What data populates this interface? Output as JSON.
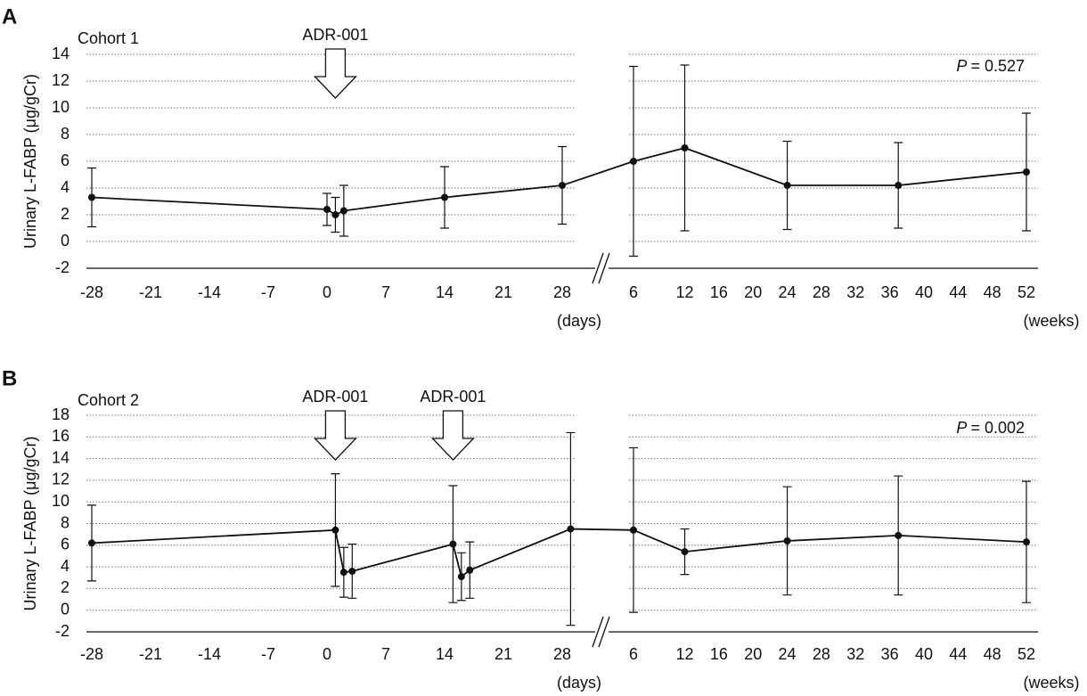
{
  "chart_data": [
    {
      "type": "line",
      "panel_label": "A",
      "cohort": "Cohort 1",
      "ylabel": "Urinary L-FABP (μg/gCr)",
      "p_label": "P",
      "p_value": "= 0.527",
      "arrows": [
        {
          "label": "ADR-001",
          "x": 1
        }
      ],
      "ylim": [
        -2,
        14
      ],
      "yticks": [
        -2,
        0,
        2,
        4,
        6,
        8,
        10,
        12,
        14
      ],
      "grid": true,
      "color": "#111111",
      "days": {
        "xlim": [
          -28,
          28
        ],
        "xticks": [
          -28,
          -21,
          -14,
          -7,
          0,
          7,
          14,
          21,
          28
        ],
        "unit": "(days)",
        "x": [
          -28,
          0,
          1,
          2,
          14,
          28
        ],
        "values": [
          3.3,
          2.4,
          2.0,
          2.3,
          3.3,
          4.2
        ],
        "errors": [
          2.2,
          1.2,
          1.3,
          1.9,
          2.3,
          2.9
        ]
      },
      "weeks": {
        "xlim": [
          6,
          52
        ],
        "xticks": [
          6,
          12,
          16,
          20,
          24,
          28,
          32,
          36,
          40,
          44,
          48,
          52
        ],
        "unit": "(weeks)",
        "x": [
          6,
          12,
          24,
          37,
          52
        ],
        "values": [
          6.0,
          7.0,
          4.2,
          4.2,
          5.2
        ],
        "errors": [
          7.1,
          6.2,
          3.3,
          3.2,
          4.4
        ]
      }
    },
    {
      "type": "line",
      "panel_label": "B",
      "cohort": "Cohort 2",
      "ylabel": "Urinary L-FABP (μg/gCr)",
      "p_label": "P",
      "p_value": "= 0.002",
      "arrows": [
        {
          "label": "ADR-001",
          "x": 1
        },
        {
          "label": "ADR-001",
          "x": 15
        }
      ],
      "ylim": [
        -2,
        18
      ],
      "yticks": [
        -2,
        0,
        2,
        4,
        6,
        8,
        10,
        12,
        14,
        16,
        18
      ],
      "grid": true,
      "color": "#111111",
      "days": {
        "xlim": [
          -28,
          28
        ],
        "xticks": [
          -28,
          -21,
          -14,
          -7,
          0,
          7,
          14,
          21,
          28
        ],
        "unit": "(days)",
        "x": [
          -28,
          1,
          2,
          3,
          15,
          16,
          17,
          29
        ],
        "values": [
          6.2,
          7.4,
          3.5,
          3.6,
          6.1,
          3.1,
          3.7,
          7.5
        ],
        "errors": [
          3.5,
          5.2,
          2.3,
          2.5,
          5.4,
          2.2,
          2.6,
          8.9
        ]
      },
      "weeks": {
        "xlim": [
          6,
          52
        ],
        "xticks": [
          6,
          12,
          16,
          20,
          24,
          28,
          32,
          36,
          40,
          44,
          48,
          52
        ],
        "unit": "(weeks)",
        "x": [
          6,
          12,
          24,
          37,
          52
        ],
        "values": [
          7.4,
          5.4,
          6.4,
          6.9,
          6.3
        ],
        "errors": [
          7.6,
          2.1,
          5.0,
          5.5,
          5.6
        ]
      }
    }
  ]
}
